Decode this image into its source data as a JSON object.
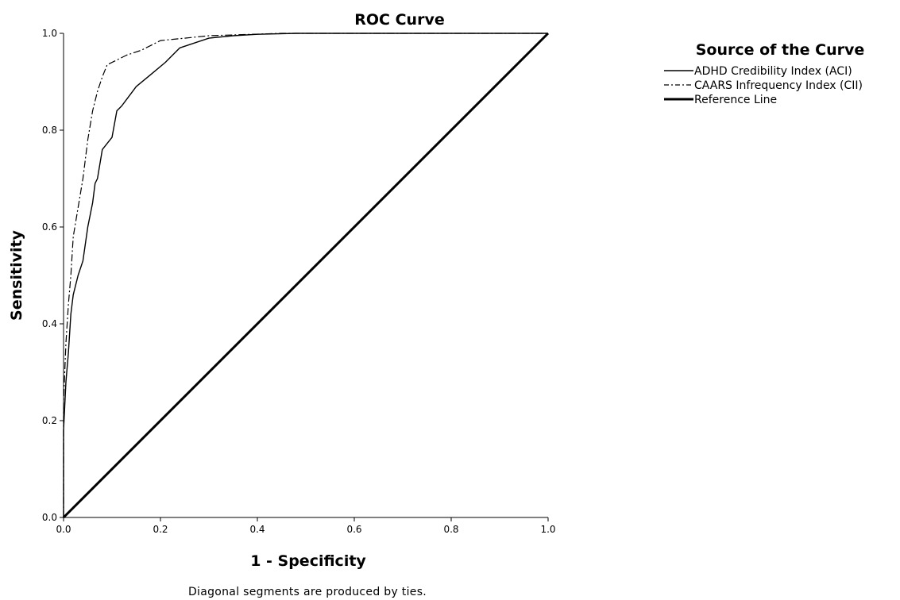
{
  "chart_data": {
    "type": "line",
    "title": "ROC Curve",
    "xlabel": "1 - Specificity",
    "ylabel": "Sensitivity",
    "xlim": [
      0.0,
      1.0
    ],
    "ylim": [
      0.0,
      1.0
    ],
    "x_ticks": [
      "0.0",
      "0.2",
      "0.4",
      "0.6",
      "0.8",
      "1.0"
    ],
    "y_ticks": [
      "0.0",
      "0.2",
      "0.4",
      "0.6",
      "0.8",
      "1.0"
    ],
    "grid": false,
    "legend": {
      "title": "Source of the Curve",
      "placement": "right"
    },
    "footnote": "Diagonal segments are produced by ties.",
    "series": [
      {
        "name": "ADHD Credibility Index (ACI)",
        "style": "solid",
        "color": "#000000",
        "points": [
          [
            0.0,
            0.0
          ],
          [
            0.0,
            0.18
          ],
          [
            0.005,
            0.28
          ],
          [
            0.01,
            0.34
          ],
          [
            0.015,
            0.42
          ],
          [
            0.02,
            0.46
          ],
          [
            0.03,
            0.5
          ],
          [
            0.04,
            0.53
          ],
          [
            0.05,
            0.6
          ],
          [
            0.06,
            0.65
          ],
          [
            0.065,
            0.69
          ],
          [
            0.07,
            0.7
          ],
          [
            0.08,
            0.76
          ],
          [
            0.1,
            0.785
          ],
          [
            0.11,
            0.84
          ],
          [
            0.12,
            0.85
          ],
          [
            0.15,
            0.89
          ],
          [
            0.18,
            0.915
          ],
          [
            0.21,
            0.94
          ],
          [
            0.24,
            0.97
          ],
          [
            0.3,
            0.99
          ],
          [
            0.35,
            0.995
          ],
          [
            0.4,
            0.998
          ],
          [
            0.48,
            1.0
          ],
          [
            1.0,
            1.0
          ]
        ]
      },
      {
        "name": "CAARS Infrequency Index (CII)",
        "style": "dash-dot",
        "color": "#000000",
        "points": [
          [
            0.0,
            0.0
          ],
          [
            0.0,
            0.24
          ],
          [
            0.005,
            0.36
          ],
          [
            0.01,
            0.44
          ],
          [
            0.015,
            0.5
          ],
          [
            0.02,
            0.58
          ],
          [
            0.03,
            0.64
          ],
          [
            0.04,
            0.7
          ],
          [
            0.05,
            0.78
          ],
          [
            0.06,
            0.84
          ],
          [
            0.07,
            0.88
          ],
          [
            0.08,
            0.91
          ],
          [
            0.09,
            0.935
          ],
          [
            0.11,
            0.945
          ],
          [
            0.13,
            0.955
          ],
          [
            0.16,
            0.965
          ],
          [
            0.18,
            0.975
          ],
          [
            0.2,
            0.985
          ],
          [
            0.25,
            0.99
          ],
          [
            0.3,
            0.995
          ],
          [
            0.45,
            1.0
          ],
          [
            1.0,
            1.0
          ]
        ]
      },
      {
        "name": "Reference Line",
        "style": "solid-thick",
        "color": "#000000",
        "points": [
          [
            0.0,
            0.0
          ],
          [
            1.0,
            1.0
          ]
        ]
      }
    ]
  }
}
